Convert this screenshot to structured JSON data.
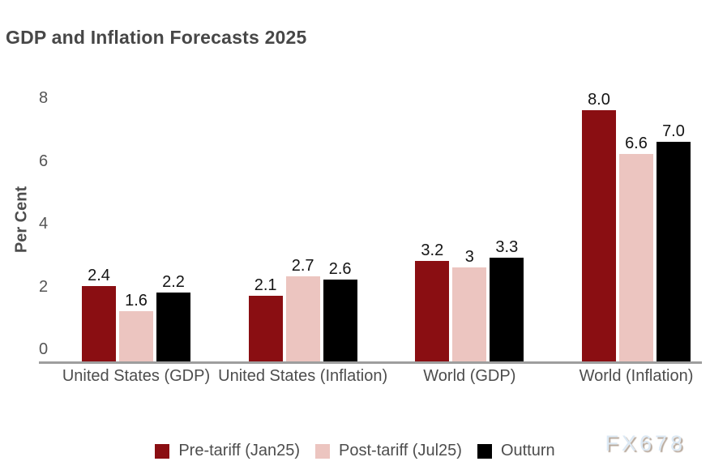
{
  "chart_data": {
    "type": "bar",
    "title": "GDP and Inflation Forecasts 2025",
    "ylabel": "Per Cent",
    "ylim": [
      0,
      8
    ],
    "yticks": [
      0,
      2,
      4,
      6,
      8
    ],
    "grid": false,
    "legend_position": "bottom",
    "categories": [
      "United States (GDP)",
      "United States (Inflation)",
      "World (GDP)",
      "World (Inflation)"
    ],
    "series": [
      {
        "name": "Pre-tariff (Jan25)",
        "color": "#8a0e12",
        "values": [
          2.4,
          2.1,
          3.2,
          8.0
        ],
        "labels": [
          "2.4",
          "2.1",
          "3.2",
          "8.0"
        ]
      },
      {
        "name": "Post-tariff (Jul25)",
        "color": "#ecc5c0",
        "values": [
          1.6,
          2.7,
          3.0,
          6.6
        ],
        "labels": [
          "1.6",
          "2.7",
          "3",
          "6.6"
        ]
      },
      {
        "name": "Outturn",
        "color": "#000000",
        "values": [
          2.2,
          2.6,
          3.3,
          7.0
        ],
        "labels": [
          "2.2",
          "2.6",
          "3.3",
          "7.0"
        ]
      }
    ],
    "axis_color": "#9e9e9e",
    "text_color": "#4d4d4d",
    "watermark": "FX678"
  }
}
